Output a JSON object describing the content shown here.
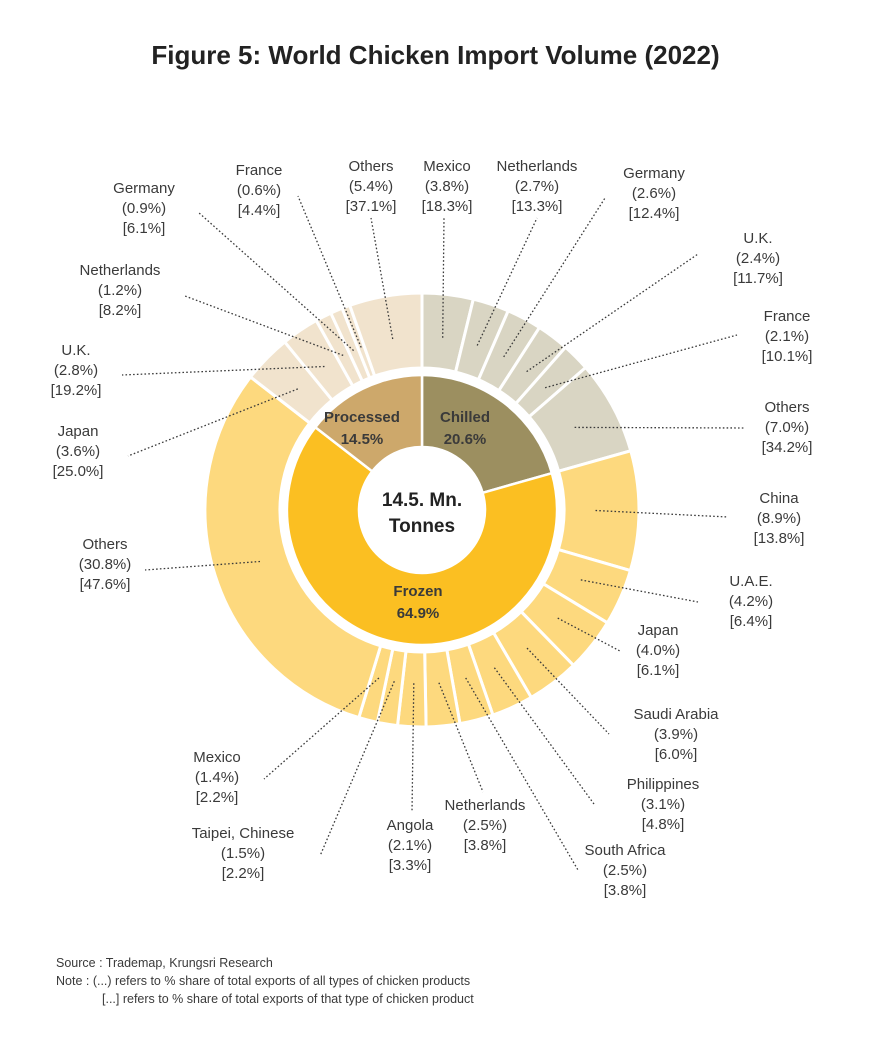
{
  "chart_data": {
    "type": "pie",
    "title": "Figure 5: World Chicken Import Volume (2022)",
    "center_label": [
      "14.5. Mn.",
      "Tonnes"
    ],
    "inner": [
      {
        "name": "Chilled",
        "value_label": "20.6%",
        "value": 20.6,
        "color": "#9c8f60"
      },
      {
        "name": "Frozen",
        "value_label": "64.9%",
        "value": 64.9,
        "color": "#fbbf22"
      },
      {
        "name": "Processed",
        "value_label": "14.5%",
        "value": 14.5,
        "color": "#cda86b"
      }
    ],
    "outer": [
      {
        "group": "Chilled",
        "name": "Mexico",
        "share_total": "(3.8%)",
        "share_type": "[18.3%]",
        "value": 3.8,
        "color": "#d9d5c3"
      },
      {
        "group": "Chilled",
        "name": "Netherlands",
        "share_total": "(2.7%)",
        "share_type": "[13.3%]",
        "value": 2.7,
        "color": "#d9d5c3"
      },
      {
        "group": "Chilled",
        "name": "Germany",
        "share_total": "(2.6%)",
        "share_type": "[12.4%]",
        "value": 2.6,
        "color": "#d9d5c3"
      },
      {
        "group": "Chilled",
        "name": "U.K.",
        "share_total": "(2.4%)",
        "share_type": "[11.7%]",
        "value": 2.4,
        "color": "#d9d5c3"
      },
      {
        "group": "Chilled",
        "name": "France",
        "share_total": "(2.1%)",
        "share_type": "[10.1%]",
        "value": 2.1,
        "color": "#d9d5c3"
      },
      {
        "group": "Chilled",
        "name": "Others",
        "share_total": "(7.0%)",
        "share_type": "[34.2%]",
        "value": 7.0,
        "color": "#d9d5c3"
      },
      {
        "group": "Frozen",
        "name": "China",
        "share_total": "(8.9%)",
        "share_type": "[13.8%]",
        "value": 8.9,
        "color": "#fdd97e"
      },
      {
        "group": "Frozen",
        "name": "U.A.E.",
        "share_total": "(4.2%)",
        "share_type": "[6.4%]",
        "value": 4.2,
        "color": "#fdd97e"
      },
      {
        "group": "Frozen",
        "name": "Japan",
        "share_total": "(4.0%)",
        "share_type": "[6.1%]",
        "value": 4.0,
        "color": "#fdd97e"
      },
      {
        "group": "Frozen",
        "name": "Saudi Arabia",
        "share_total": "(3.9%)",
        "share_type": "[6.0%]",
        "value": 3.9,
        "color": "#fdd97e"
      },
      {
        "group": "Frozen",
        "name": "Philippines",
        "share_total": "(3.1%)",
        "share_type": "[4.8%]",
        "value": 3.1,
        "color": "#fdd97e"
      },
      {
        "group": "Frozen",
        "name": "South Africa",
        "share_total": "(2.5%)",
        "share_type": "[3.8%]",
        "value": 2.5,
        "color": "#fdd97e"
      },
      {
        "group": "Frozen",
        "name": "Netherlands",
        "share_total": "(2.5%)",
        "share_type": "[3.8%]",
        "value": 2.5,
        "color": "#fdd97e"
      },
      {
        "group": "Frozen",
        "name": "Angola",
        "share_total": "(2.1%)",
        "share_type": "[3.3%]",
        "value": 2.1,
        "color": "#fdd97e"
      },
      {
        "group": "Frozen",
        "name": "Taipei, Chinese",
        "share_total": "(1.5%)",
        "share_type": "[2.2%]",
        "value": 1.5,
        "color": "#fdd97e"
      },
      {
        "group": "Frozen",
        "name": "Mexico",
        "share_total": "(1.4%)",
        "share_type": "[2.2%]",
        "value": 1.4,
        "color": "#fdd97e"
      },
      {
        "group": "Frozen",
        "name": "Others",
        "share_total": "(30.8%)",
        "share_type": "[47.6%]",
        "value": 30.8,
        "color": "#fdd97e"
      },
      {
        "group": "Processed",
        "name": "Japan",
        "share_total": "(3.6%)",
        "share_type": "[25.0%]",
        "value": 3.6,
        "color": "#f1e3cd"
      },
      {
        "group": "Processed",
        "name": "U.K.",
        "share_total": "(2.8%)",
        "share_type": "[19.2%]",
        "value": 2.8,
        "color": "#f1e3cd"
      },
      {
        "group": "Processed",
        "name": "Netherlands",
        "share_total": "(1.2%)",
        "share_type": "[8.2%]",
        "value": 1.2,
        "color": "#f1e3cd"
      },
      {
        "group": "Processed",
        "name": "Germany",
        "share_total": "(0.9%)",
        "share_type": "[6.1%]",
        "value": 0.9,
        "color": "#f1e3cd"
      },
      {
        "group": "Processed",
        "name": "France",
        "share_total": "(0.6%)",
        "share_type": "[4.4%]",
        "value": 0.6,
        "color": "#f1e3cd"
      },
      {
        "group": "Processed",
        "name": "Others",
        "share_total": "(5.4%)",
        "share_type": "[37.1%]",
        "value": 5.4,
        "color": "#f1e3cd"
      }
    ]
  },
  "footer": {
    "source": "Source : Trademap, Krungsri Research",
    "note1": "Note : (...) refers to % share of total exports of all types of chicken products",
    "note2": "[...] refers to % share of total exports of that type of chicken product"
  }
}
